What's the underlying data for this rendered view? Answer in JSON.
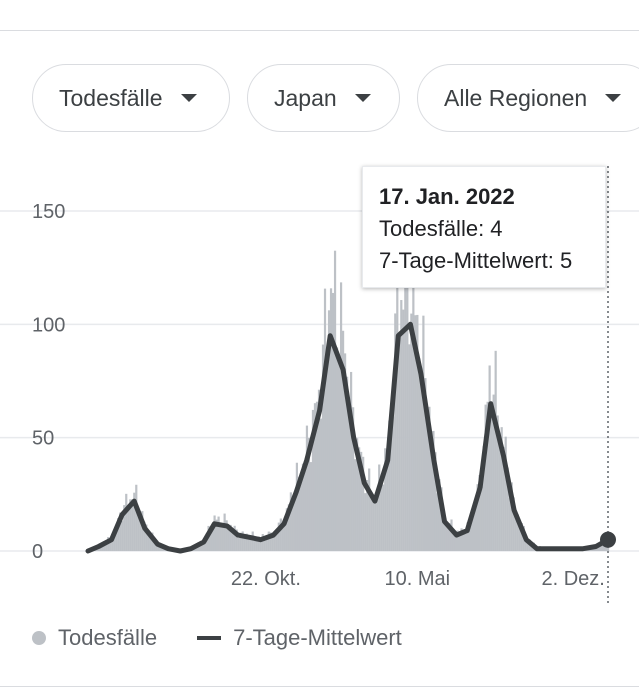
{
  "filters": {
    "metric": "Todesfälle",
    "country": "Japan",
    "region": "Alle Regionen"
  },
  "tooltip": {
    "date": "17. Jan. 2022",
    "daily_line": "Todesfälle: 4",
    "avg_line": "7-Tage-Mittelwert: 5"
  },
  "legend": {
    "daily": "Todesfälle",
    "average": "7-Tage-Mittelwert"
  },
  "colors": {
    "bars": "#bdc1c6",
    "line": "#3c4043",
    "grid": "#e8eaed"
  },
  "chart_data": {
    "type": "bar",
    "title": "",
    "xlabel": "",
    "ylabel": "",
    "ylim": [
      0,
      150
    ],
    "y_ticks": [
      0,
      50,
      100,
      150
    ],
    "x_ticks": [
      {
        "label": "22. Okt.",
        "date": "2020-10-22"
      },
      {
        "label": "10. Mai",
        "date": "2021-05-10"
      },
      {
        "label": "2. Dez.",
        "date": "2021-12-02"
      }
    ],
    "x_range": [
      "2020-03-01",
      "2022-01-17"
    ],
    "grid": "horizontal",
    "legend_position": "bottom",
    "series": [
      {
        "name": "Todesfälle",
        "kind": "bar",
        "x": [
          "2020-03-01",
          "2020-03-15",
          "2020-04-01",
          "2020-04-15",
          "2020-05-01",
          "2020-05-15",
          "2020-06-01",
          "2020-06-15",
          "2020-07-01",
          "2020-07-15",
          "2020-08-01",
          "2020-08-15",
          "2020-09-01",
          "2020-09-15",
          "2020-10-01",
          "2020-10-15",
          "2020-11-01",
          "2020-11-15",
          "2020-12-01",
          "2020-12-15",
          "2021-01-01",
          "2021-01-15",
          "2021-02-01",
          "2021-02-15",
          "2021-03-01",
          "2021-03-15",
          "2021-04-01",
          "2021-04-15",
          "2021-05-01",
          "2021-05-15",
          "2021-06-01",
          "2021-06-15",
          "2021-07-01",
          "2021-07-15",
          "2021-08-01",
          "2021-08-15",
          "2021-09-01",
          "2021-09-15",
          "2021-10-01",
          "2021-10-15",
          "2021-11-01",
          "2021-11-15",
          "2021-12-01",
          "2021-12-15",
          "2022-01-01",
          "2022-01-17"
        ],
        "values": [
          1,
          2,
          6,
          18,
          26,
          12,
          3,
          1,
          0,
          1,
          5,
          14,
          13,
          8,
          7,
          6,
          8,
          14,
          30,
          45,
          70,
          118,
          95,
          55,
          35,
          23,
          45,
          110,
          118,
          90,
          45,
          15,
          8,
          10,
          30,
          82,
          48,
          20,
          6,
          2,
          1,
          1,
          1,
          1,
          2,
          4
        ]
      },
      {
        "name": "7-Tage-Mittelwert",
        "kind": "line",
        "x": [
          "2020-03-01",
          "2020-03-15",
          "2020-04-01",
          "2020-04-15",
          "2020-05-01",
          "2020-05-15",
          "2020-06-01",
          "2020-06-15",
          "2020-07-01",
          "2020-07-15",
          "2020-08-01",
          "2020-08-15",
          "2020-09-01",
          "2020-09-15",
          "2020-10-01",
          "2020-10-15",
          "2020-11-01",
          "2020-11-15",
          "2020-12-01",
          "2020-12-15",
          "2021-01-01",
          "2021-01-15",
          "2021-02-01",
          "2021-02-15",
          "2021-03-01",
          "2021-03-15",
          "2021-04-01",
          "2021-04-15",
          "2021-05-01",
          "2021-05-15",
          "2021-06-01",
          "2021-06-15",
          "2021-07-01",
          "2021-07-15",
          "2021-08-01",
          "2021-08-15",
          "2021-09-01",
          "2021-09-15",
          "2021-10-01",
          "2021-10-15",
          "2021-11-01",
          "2021-11-15",
          "2021-12-01",
          "2021-12-15",
          "2022-01-01",
          "2022-01-17"
        ],
        "values": [
          0,
          2,
          5,
          16,
          22,
          10,
          3,
          1,
          0,
          1,
          4,
          12,
          11,
          7,
          6,
          5,
          7,
          12,
          26,
          40,
          62,
          95,
          80,
          50,
          30,
          22,
          40,
          95,
          100,
          78,
          40,
          13,
          7,
          9,
          28,
          65,
          42,
          18,
          5,
          1,
          1,
          1,
          1,
          1,
          2,
          5
        ]
      }
    ]
  }
}
